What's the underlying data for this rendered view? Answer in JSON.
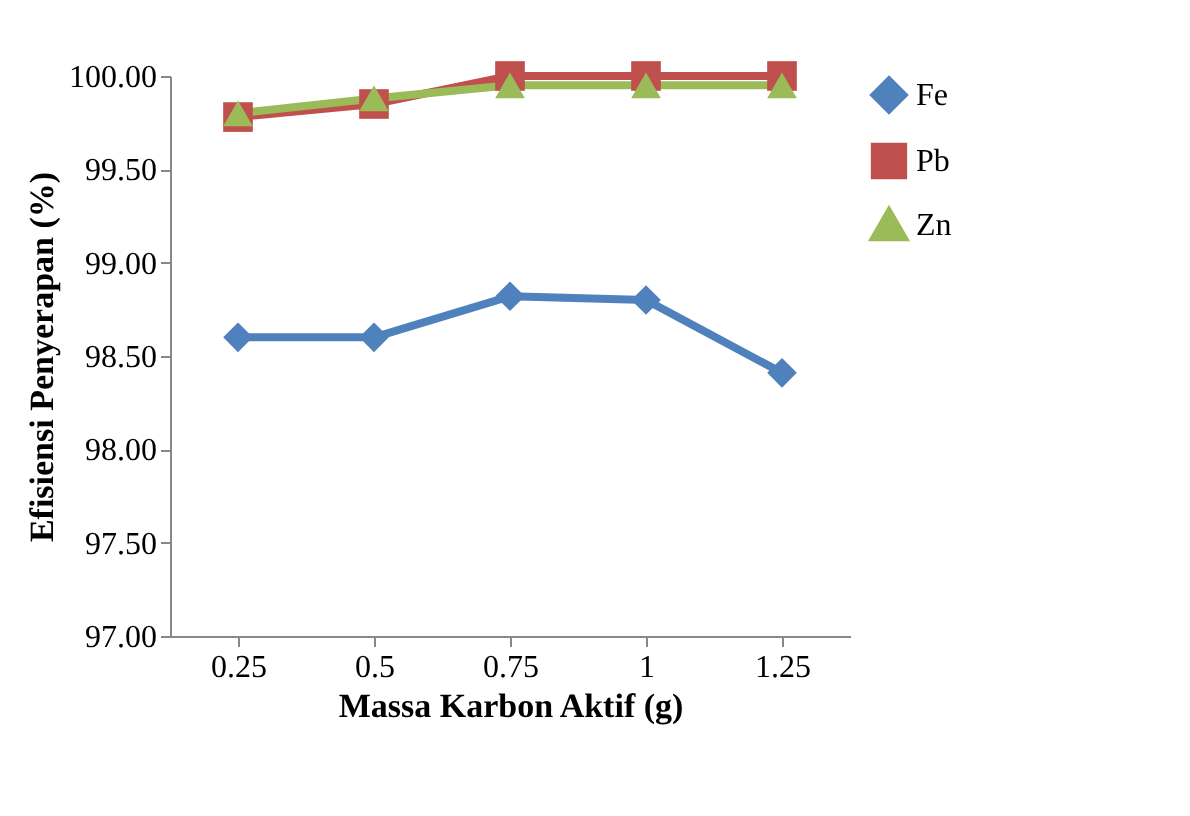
{
  "chart_data": {
    "type": "line",
    "xlabel": "Massa Karbon Aktif (g)",
    "ylabel": "Efisiensi Penyerapan (%)",
    "categories": [
      "0.25",
      "0.5",
      "0.75",
      "1",
      "1.25"
    ],
    "ylim": [
      97,
      100
    ],
    "yticks": [
      {
        "value": 97,
        "label": "97.00"
      },
      {
        "value": 97.5,
        "label": "97.50"
      },
      {
        "value": 98,
        "label": "98.00"
      },
      {
        "value": 98.5,
        "label": "98.50"
      },
      {
        "value": 99,
        "label": "99.00"
      },
      {
        "value": 99.5,
        "label": "99.50"
      },
      {
        "value": 100,
        "label": "100.00"
      }
    ],
    "grid": false,
    "legend": "right",
    "line_style": "solid",
    "series": [
      {
        "name": "Fe",
        "color": "#4f81bd",
        "marker": "diamond",
        "values": [
          98.6,
          98.6,
          98.82,
          98.8,
          98.41
        ]
      },
      {
        "name": "Pb",
        "color": "#c0504d",
        "marker": "square",
        "values": [
          99.78,
          99.85,
          100.0,
          100.0,
          100.0
        ]
      },
      {
        "name": "Zn",
        "color": "#9bbb59",
        "marker": "triangle",
        "values": [
          99.8,
          99.88,
          99.95,
          99.95,
          99.95
        ]
      }
    ]
  }
}
